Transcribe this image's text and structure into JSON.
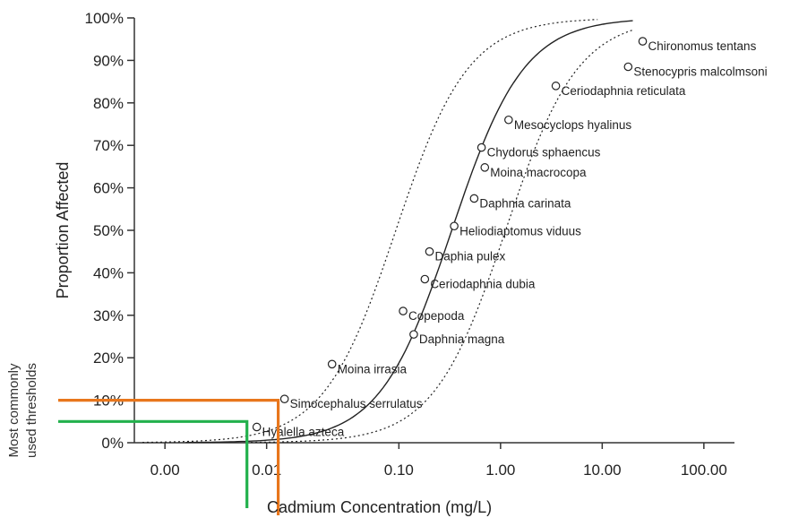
{
  "chart_data": {
    "type": "scatter",
    "xlabel": "Cadmium Concentration (mg/L)",
    "ylabel": "Proportion Affected",
    "threshold_label": [
      "Most commonly",
      "used thresholds"
    ],
    "x_scale": "log",
    "xlim": [
      0.00025,
      300
    ],
    "ylim": [
      0,
      1
    ],
    "x_ticks": [
      {
        "value": 0.0005,
        "label": "0.00"
      },
      {
        "value": 0.005,
        "label": "0.01"
      },
      {
        "value": 0.1,
        "label": "0.10"
      },
      {
        "value": 1,
        "label": "1.00"
      },
      {
        "value": 10,
        "label": "10.00"
      },
      {
        "value": 100,
        "label": "100.00"
      }
    ],
    "y_ticks": [
      {
        "value": 0.0,
        "label": "0%"
      },
      {
        "value": 0.1,
        "label": "10%"
      },
      {
        "value": 0.2,
        "label": "20%"
      },
      {
        "value": 0.3,
        "label": "30%"
      },
      {
        "value": 0.4,
        "label": "40%"
      },
      {
        "value": 0.5,
        "label": "50%"
      },
      {
        "value": 0.6,
        "label": "60%"
      },
      {
        "value": 0.7,
        "label": "70%"
      },
      {
        "value": 0.8,
        "label": "80%"
      },
      {
        "value": 0.9,
        "label": "90%"
      },
      {
        "value": 1.0,
        "label": "100%"
      }
    ],
    "points": [
      {
        "label": "Hyalella azteca",
        "x": 0.004,
        "y": 0.037
      },
      {
        "label": "Simocephalus serrulatus",
        "x": 0.0075,
        "y": 0.103
      },
      {
        "label": "Moina irrasia",
        "x": 0.022,
        "y": 0.185
      },
      {
        "label": "Daphnia magna",
        "x": 0.14,
        "y": 0.255
      },
      {
        "label": "Copepoda",
        "x": 0.11,
        "y": 0.31
      },
      {
        "label": "Ceriodaphnia dubia",
        "x": 0.18,
        "y": 0.385
      },
      {
        "label": "Daphia pulex",
        "x": 0.2,
        "y": 0.45
      },
      {
        "label": "Heliodiaptomus viduus",
        "x": 0.35,
        "y": 0.51
      },
      {
        "label": "Daphnia carinata",
        "x": 0.55,
        "y": 0.575
      },
      {
        "label": "Moina macrocopa",
        "x": 0.7,
        "y": 0.648
      },
      {
        "label": "Chydorus sphaencus",
        "x": 0.65,
        "y": 0.695
      },
      {
        "label": "Mesocyclops hyalinus",
        "x": 1.2,
        "y": 0.76
      },
      {
        "label": "Ceriodaphnia reticulata",
        "x": 3.5,
        "y": 0.84
      },
      {
        "label": "Stenocypris malcolmsoni",
        "x": 18,
        "y": 0.885
      },
      {
        "label": "Chironomus tentans",
        "x": 25,
        "y": 0.945
      }
    ],
    "curves": [
      {
        "style": "solid",
        "log10_x50": -0.48,
        "slope": 0.78,
        "x_range": [
          0.0008,
          20
        ]
      },
      {
        "style": "dotted",
        "log10_x50": -1.03,
        "slope": 0.78,
        "x_range": [
          0.0003,
          9
        ]
      },
      {
        "style": "dotted",
        "log10_x50": 0.05,
        "slope": 0.78,
        "x_range": [
          0.0035,
          20
        ]
      }
    ],
    "thresholds": [
      {
        "y": 0.1,
        "x": 0.0065,
        "color": "#e8761c"
      },
      {
        "y": 0.05,
        "x": 0.0032,
        "color": "#22b14c"
      }
    ]
  }
}
